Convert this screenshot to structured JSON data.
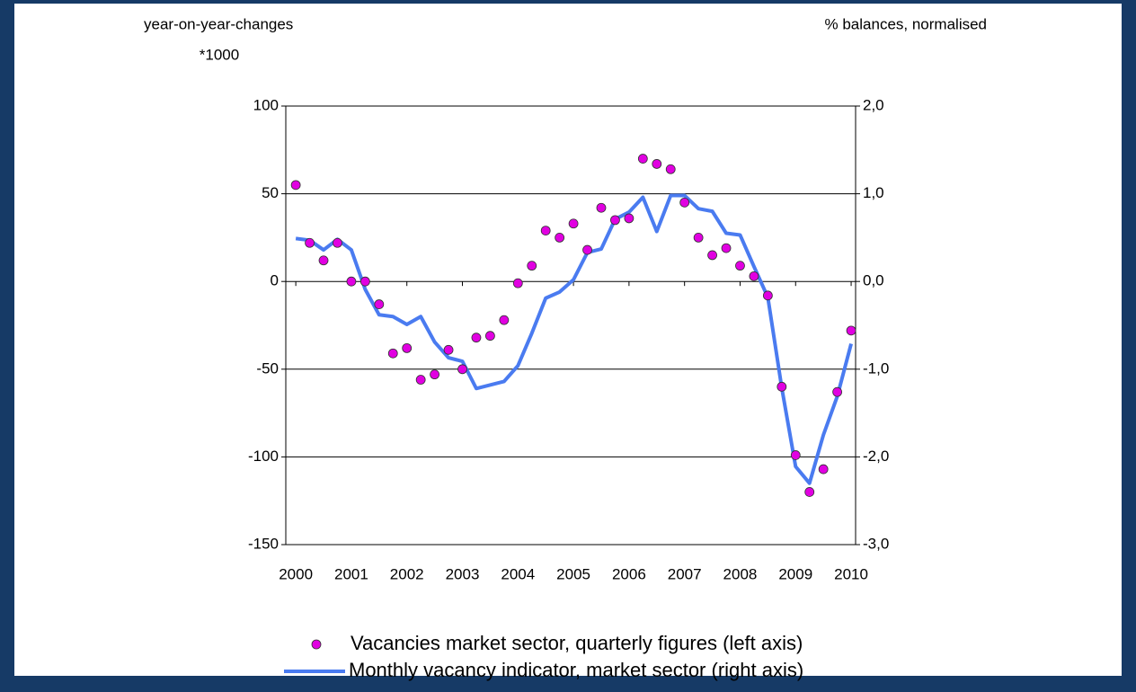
{
  "chart_data": {
    "type": "scatter+line",
    "y_axis_label": "year-on-year-changes",
    "y_axis_unit": "*1000",
    "y2_axis_label": "% balances, normalised",
    "xlim": [
      1999.82,
      2010.08
    ],
    "xticks": [
      2000,
      2001,
      2002,
      2003,
      2004,
      2005,
      2006,
      2007,
      2008,
      2009,
      2010
    ],
    "ylim": [
      -150,
      100
    ],
    "yticks": [
      -150,
      -100,
      -50,
      0,
      50,
      100
    ],
    "y2lim": [
      -3,
      2
    ],
    "y2ticks": [
      {
        "value": -3,
        "label": "-3,0"
      },
      {
        "value": -2,
        "label": "-2,0"
      },
      {
        "value": -1,
        "label": "-1,0"
      },
      {
        "value": 0,
        "label": "0,0"
      },
      {
        "value": 1,
        "label": "1,0"
      },
      {
        "value": 2,
        "label": "2,0"
      }
    ],
    "grid": true,
    "series": [
      {
        "name": "Vacancies market sector, quarterly figures (left axis)",
        "type": "scatter",
        "color": "#e100e1",
        "x": [
          2000,
          2000.25,
          2000.5,
          2000.75,
          2001,
          2001.25,
          2001.5,
          2001.75,
          2002,
          2002.25,
          2002.5,
          2002.75,
          2003,
          2003.25,
          2003.5,
          2003.75,
          2004,
          2004.25,
          2004.5,
          2004.75,
          2005,
          2005.25,
          2005.5,
          2005.75,
          2006,
          2006.25,
          2006.5,
          2006.75,
          2007,
          2007.25,
          2007.5,
          2007.75,
          2008,
          2008.25,
          2008.5,
          2008.75,
          2009,
          2009.25,
          2009.5,
          2009.75,
          2010
        ],
        "values": [
          55,
          22,
          12,
          22,
          0,
          0,
          -13,
          -41,
          -38,
          -56,
          -53,
          -39,
          -50,
          -32,
          -31,
          -22,
          -1,
          9,
          29,
          25,
          33,
          18,
          42,
          35,
          36,
          70,
          67,
          64,
          45,
          25,
          15,
          19,
          9,
          3,
          -8,
          -60,
          -99,
          -120,
          -107,
          -63,
          -28
        ]
      },
      {
        "name": "Monthly vacancy indicator, market sector (right axis)",
        "type": "line",
        "axis": "y2",
        "color": "#4a7bf0",
        "x": [
          2000,
          2000.25,
          2000.5,
          2000.75,
          2001,
          2001.25,
          2001.5,
          2001.75,
          2002,
          2002.25,
          2002.5,
          2002.75,
          2003,
          2003.25,
          2003.75,
          2004,
          2004.25,
          2004.5,
          2004.75,
          2005,
          2005.25,
          2005.5,
          2005.75,
          2006,
          2006.25,
          2006.5,
          2006.75,
          2007,
          2007.25,
          2007.5,
          2007.75,
          2008,
          2008.25,
          2008.5,
          2008.75,
          2009,
          2009.25,
          2009.5,
          2009.75,
          2010
        ],
        "values": [
          0.49,
          0.47,
          0.36,
          0.48,
          0.36,
          -0.09,
          -0.38,
          -0.4,
          -0.49,
          -0.4,
          -0.69,
          -0.87,
          -0.91,
          -1.22,
          -1.14,
          -0.96,
          -0.59,
          -0.19,
          -0.12,
          0.02,
          0.33,
          0.37,
          0.71,
          0.79,
          0.96,
          0.57,
          0.98,
          0.98,
          0.83,
          0.8,
          0.55,
          0.53,
          0.17,
          -0.18,
          -1.21,
          -2.11,
          -2.3,
          -1.75,
          -1.31,
          -0.71
        ]
      }
    ]
  }
}
